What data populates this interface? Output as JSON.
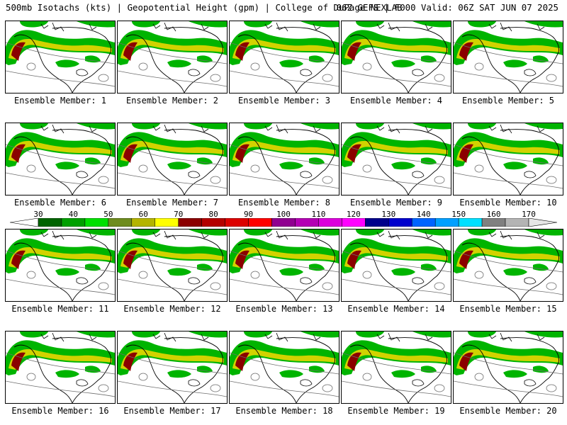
{
  "header": {
    "left": "500mb Isotachs (kts) | Geopotential Height (gpm) | College of DuPage NEXLAB",
    "right": "06Z GEFS | F000 Valid: 06Z SAT JUN 07 2025"
  },
  "panels": [
    {
      "caption": "Ensemble Member: 1"
    },
    {
      "caption": "Ensemble Member: 2"
    },
    {
      "caption": "Ensemble Member: 3"
    },
    {
      "caption": "Ensemble Member: 4"
    },
    {
      "caption": "Ensemble Member: 5"
    },
    {
      "caption": "Ensemble Member: 6"
    },
    {
      "caption": "Ensemble Member: 7"
    },
    {
      "caption": "Ensemble Member: 8"
    },
    {
      "caption": "Ensemble Member: 9"
    },
    {
      "caption": "Ensemble Member: 10"
    },
    {
      "caption": "Ensemble Member: 11"
    },
    {
      "caption": "Ensemble Member: 12"
    },
    {
      "caption": "Ensemble Member: 13"
    },
    {
      "caption": "Ensemble Member: 14"
    },
    {
      "caption": "Ensemble Member: 15"
    },
    {
      "caption": "Ensemble Member: 16"
    },
    {
      "caption": "Ensemble Member: 17"
    },
    {
      "caption": "Ensemble Member: 18"
    },
    {
      "caption": "Ensemble Member: 19"
    },
    {
      "caption": "Ensemble Member: 20"
    }
  ],
  "colorbar": {
    "ticks": [
      "30",
      "40",
      "50",
      "60",
      "70",
      "80",
      "90",
      "100",
      "110",
      "120",
      "130",
      "140",
      "150",
      "160",
      "170"
    ],
    "colors": [
      "#006400",
      "#00a000",
      "#00e000",
      "#6e8c1e",
      "#b4b400",
      "#ffff00",
      "#8b0000",
      "#b40000",
      "#dc0000",
      "#ff0000",
      "#900090",
      "#b400b4",
      "#dc00dc",
      "#ff00ff",
      "#00008b",
      "#0000cd",
      "#0064ff",
      "#00a0ff",
      "#00e0ff",
      "#808080",
      "#b4b4b4"
    ]
  },
  "map_colors": {
    "isotach_low": "#00b400",
    "isotach_mid": "#d2d200",
    "isotach_high": "#8b0000",
    "coast": "#000000",
    "height_contour": "#6e6e6e"
  }
}
